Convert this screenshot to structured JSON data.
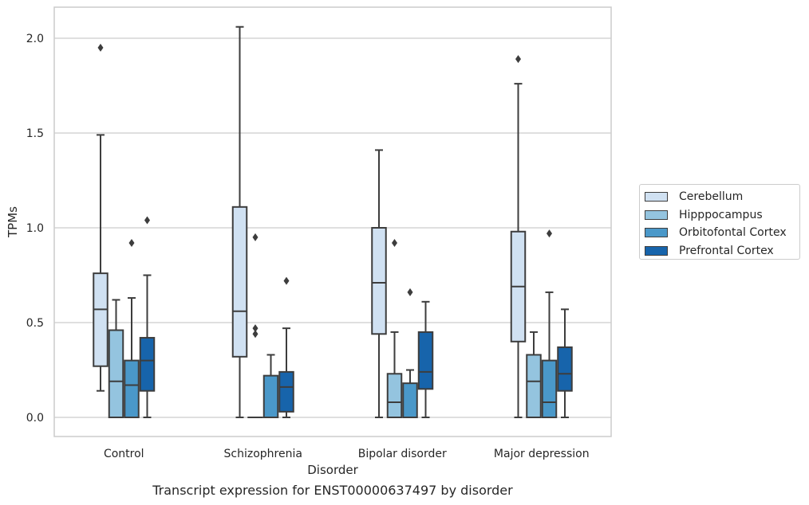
{
  "caption": "Transcript expression for ENST00000637497 by disorder",
  "chart_data": {
    "type": "boxplot",
    "xlabel": "Disorder",
    "ylabel": "TPMs",
    "ylim": [
      -0.1,
      2.16
    ],
    "yticks": [
      "0.0",
      "0.5",
      "1.0",
      "1.5",
      "2.0"
    ],
    "grid": true,
    "legend_position": "right",
    "categories": [
      "Control",
      "Schizophrenia",
      "Bipolar disorder",
      "Major depression"
    ],
    "series": [
      {
        "name": "Cerebellum",
        "color": "#d0e1f2",
        "boxes": [
          {
            "whislo": 0.14,
            "q1": 0.27,
            "med": 0.57,
            "q3": 0.76,
            "whishi": 1.49,
            "fliers": [
              1.95
            ]
          },
          {
            "whislo": 0.0,
            "q1": 0.32,
            "med": 0.56,
            "q3": 1.11,
            "whishi": 2.06,
            "fliers": []
          },
          {
            "whislo": 0.0,
            "q1": 0.44,
            "med": 0.71,
            "q3": 1.0,
            "whishi": 1.41,
            "fliers": []
          },
          {
            "whislo": 0.0,
            "q1": 0.4,
            "med": 0.69,
            "q3": 0.98,
            "whishi": 1.76,
            "fliers": [
              1.89
            ]
          }
        ]
      },
      {
        "name": "Hipppocampus",
        "color": "#94c4df",
        "boxes": [
          {
            "whislo": 0.0,
            "q1": 0.0,
            "med": 0.19,
            "q3": 0.46,
            "whishi": 0.62,
            "fliers": []
          },
          {
            "whislo": 0.0,
            "q1": 0.0,
            "med": 0.0,
            "q3": 0.0,
            "whishi": 0.0,
            "fliers": [
              0.95,
              0.47,
              0.44
            ]
          },
          {
            "whislo": 0.0,
            "q1": 0.0,
            "med": 0.08,
            "q3": 0.23,
            "whishi": 0.45,
            "fliers": [
              0.92
            ]
          },
          {
            "whislo": 0.0,
            "q1": 0.0,
            "med": 0.19,
            "q3": 0.33,
            "whishi": 0.45,
            "fliers": []
          }
        ]
      },
      {
        "name": "Orbitofontal Cortex",
        "color": "#4a98c9",
        "boxes": [
          {
            "whislo": 0.0,
            "q1": 0.0,
            "med": 0.17,
            "q3": 0.3,
            "whishi": 0.63,
            "fliers": [
              0.92
            ]
          },
          {
            "whislo": 0.0,
            "q1": 0.0,
            "med": 0.0,
            "q3": 0.22,
            "whishi": 0.33,
            "fliers": []
          },
          {
            "whislo": 0.0,
            "q1": 0.0,
            "med": 0.0,
            "q3": 0.18,
            "whishi": 0.25,
            "fliers": [
              0.66
            ]
          },
          {
            "whislo": 0.0,
            "q1": 0.0,
            "med": 0.08,
            "q3": 0.3,
            "whishi": 0.66,
            "fliers": [
              0.97
            ]
          }
        ]
      },
      {
        "name": "Prefrontal Cortex",
        "color": "#1764ab",
        "boxes": [
          {
            "whislo": 0.0,
            "q1": 0.14,
            "med": 0.3,
            "q3": 0.42,
            "whishi": 0.75,
            "fliers": [
              1.04
            ]
          },
          {
            "whislo": 0.0,
            "q1": 0.03,
            "med": 0.16,
            "q3": 0.24,
            "whishi": 0.47,
            "fliers": [
              0.72
            ]
          },
          {
            "whislo": 0.0,
            "q1": 0.15,
            "med": 0.24,
            "q3": 0.45,
            "whishi": 0.61,
            "fliers": []
          },
          {
            "whislo": 0.0,
            "q1": 0.14,
            "med": 0.23,
            "q3": 0.37,
            "whishi": 0.57,
            "fliers": []
          }
        ]
      }
    ]
  }
}
